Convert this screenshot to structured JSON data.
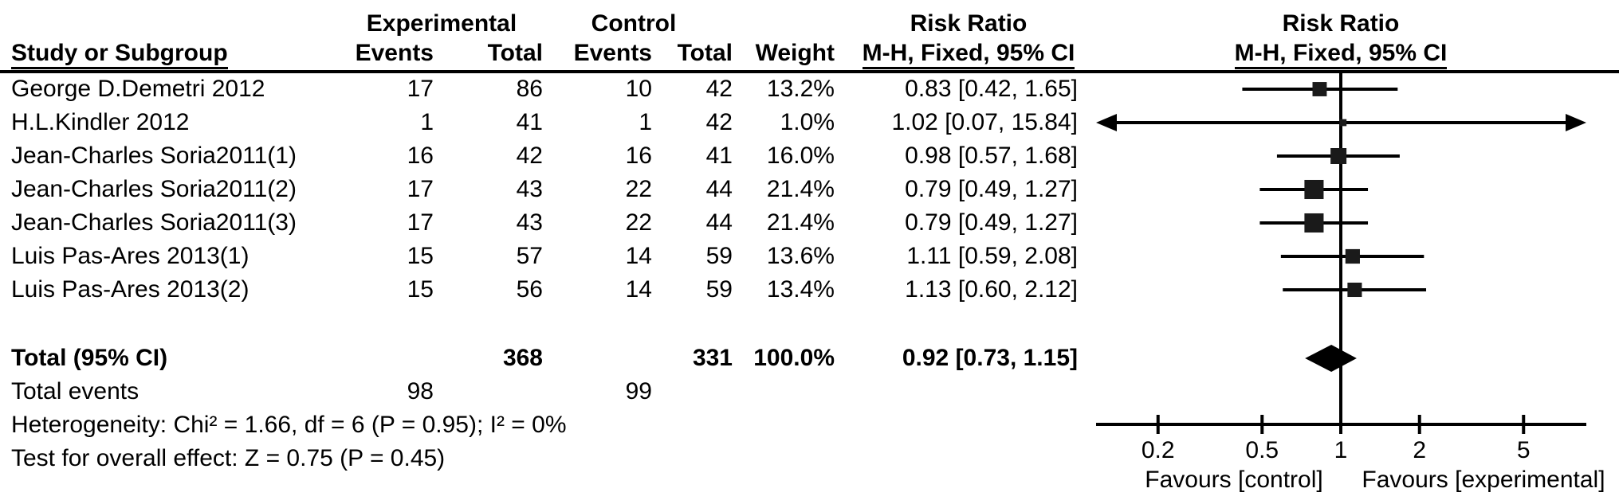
{
  "chart_data": {
    "type": "forest",
    "effect_measure": "Risk Ratio",
    "method": "M-H, Fixed, 95% CI",
    "headers": {
      "experimental_group": "Experimental",
      "control_group": "Control",
      "risk_ratio_stats": "Risk Ratio",
      "risk_ratio_plot": "Risk Ratio",
      "study": "Study or Subgroup",
      "events_exp": "Events",
      "total_exp": "Total",
      "events_ctrl": "Events",
      "total_ctrl": "Total",
      "weight": "Weight",
      "mh_ci_stats": "M-H, Fixed, 95% CI",
      "mh_ci_plot": "M-H, Fixed, 95% CI"
    },
    "studies": [
      {
        "name": "George D.Demetri 2012",
        "exp_events": "17",
        "exp_total": "86",
        "ctrl_events": "10",
        "ctrl_total": "42",
        "weight": "13.2%",
        "weight_pct": 13.2,
        "rr": 0.83,
        "ci_low": 0.42,
        "ci_high": 1.65,
        "ci_label": "0.83 [0.42, 1.65]"
      },
      {
        "name": "H.L.Kindler 2012",
        "exp_events": "1",
        "exp_total": "41",
        "ctrl_events": "1",
        "ctrl_total": "42",
        "weight": "1.0%",
        "weight_pct": 1.0,
        "rr": 1.02,
        "ci_low": 0.07,
        "ci_high": 15.84,
        "ci_label": "1.02 [0.07, 15.84]"
      },
      {
        "name": "Jean-Charles Soria2011(1)",
        "exp_events": "16",
        "exp_total": "42",
        "ctrl_events": "16",
        "ctrl_total": "41",
        "weight": "16.0%",
        "weight_pct": 16.0,
        "rr": 0.98,
        "ci_low": 0.57,
        "ci_high": 1.68,
        "ci_label": "0.98 [0.57, 1.68]"
      },
      {
        "name": "Jean-Charles Soria2011(2)",
        "exp_events": "17",
        "exp_total": "43",
        "ctrl_events": "22",
        "ctrl_total": "44",
        "weight": "21.4%",
        "weight_pct": 21.4,
        "rr": 0.79,
        "ci_low": 0.49,
        "ci_high": 1.27,
        "ci_label": "0.79 [0.49, 1.27]"
      },
      {
        "name": "Jean-Charles Soria2011(3)",
        "exp_events": "17",
        "exp_total": "43",
        "ctrl_events": "22",
        "ctrl_total": "44",
        "weight": "21.4%",
        "weight_pct": 21.4,
        "rr": 0.79,
        "ci_low": 0.49,
        "ci_high": 1.27,
        "ci_label": "0.79 [0.49, 1.27]"
      },
      {
        "name": "Luis Pas-Ares 2013(1)",
        "exp_events": "15",
        "exp_total": "57",
        "ctrl_events": "14",
        "ctrl_total": "59",
        "weight": "13.6%",
        "weight_pct": 13.6,
        "rr": 1.11,
        "ci_low": 0.59,
        "ci_high": 2.08,
        "ci_label": "1.11 [0.59, 2.08]"
      },
      {
        "name": "Luis Pas-Ares 2013(2)",
        "exp_events": "15",
        "exp_total": "56",
        "ctrl_events": "14",
        "ctrl_total": "59",
        "weight": "13.4%",
        "weight_pct": 13.4,
        "rr": 1.13,
        "ci_low": 0.6,
        "ci_high": 2.12,
        "ci_label": "1.13 [0.60, 2.12]"
      }
    ],
    "total": {
      "label": "Total (95% CI)",
      "exp_total": "368",
      "ctrl_total": "331",
      "weight": "100.0%",
      "rr": 0.92,
      "ci_low": 0.73,
      "ci_high": 1.15,
      "ci_label": "0.92 [0.73, 1.15]"
    },
    "total_events": {
      "label": "Total events",
      "exp": "98",
      "ctrl": "99"
    },
    "heterogeneity": "Heterogeneity: Chi² = 1.66, df = 6 (P = 0.95); I² = 0%",
    "overall_effect": "Test for overall effect: Z = 0.75 (P = 0.45)",
    "axis": {
      "scale": "log",
      "ticks": [
        0.2,
        0.5,
        1,
        2,
        5
      ],
      "tick_labels": [
        "0.2",
        "0.5",
        "1",
        "2",
        "5"
      ],
      "range_low": 0.2,
      "range_high": 5
    },
    "favours_left": "Favours [control]",
    "favours_right": "Favours [experimental]",
    "colors": {
      "marker": "#1a1a1a",
      "line": "#000000",
      "diamond": "#000000",
      "text": "#000000"
    }
  }
}
